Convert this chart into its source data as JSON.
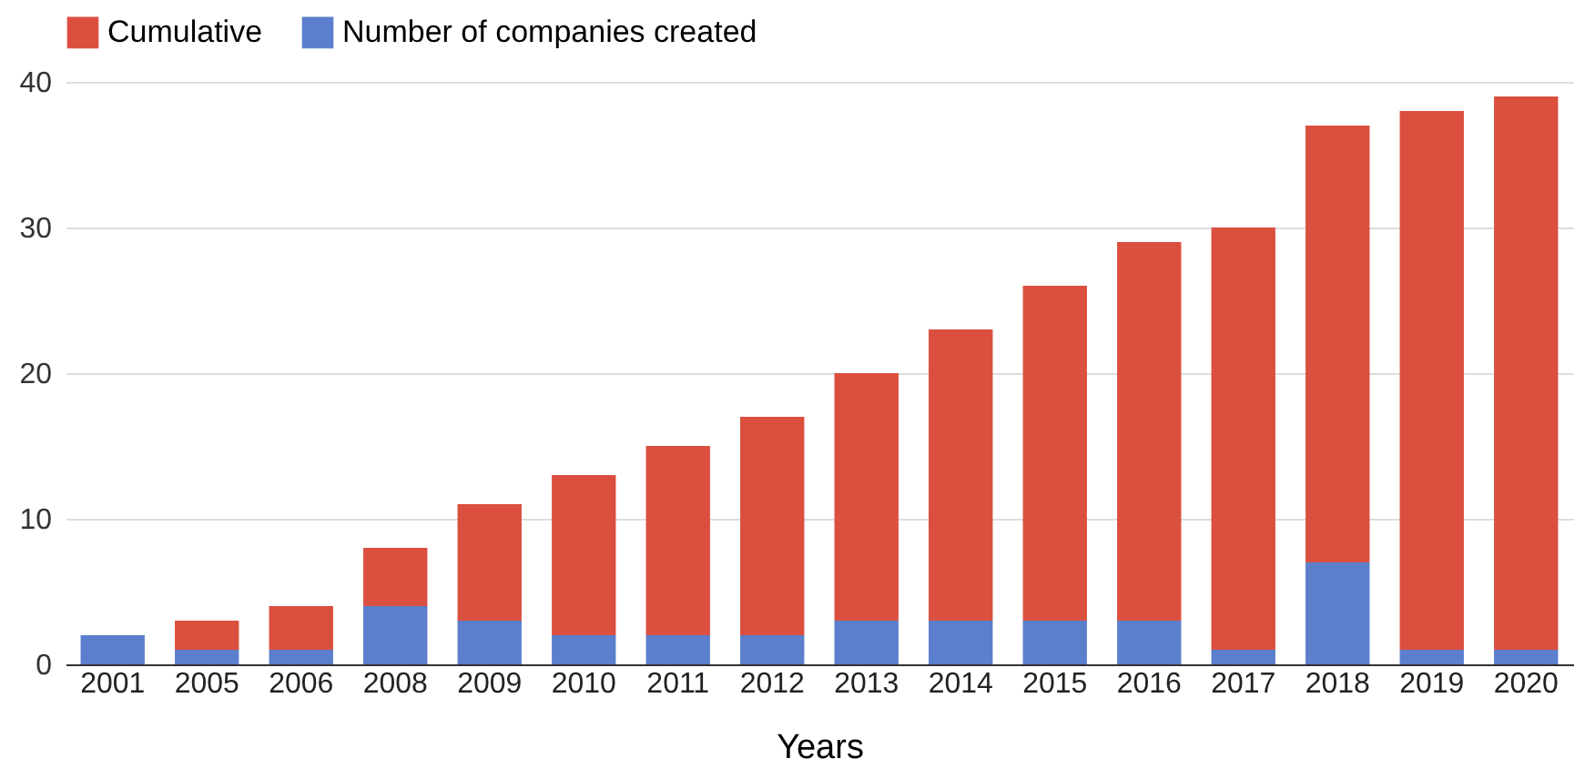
{
  "chart_data": {
    "type": "bar",
    "xlabel": "Years",
    "categories": [
      "2001",
      "2005",
      "2006",
      "2008",
      "2009",
      "2010",
      "2011",
      "2012",
      "2013",
      "2014",
      "2015",
      "2016",
      "2017",
      "2018",
      "2019",
      "2020"
    ],
    "stacked": true,
    "series": [
      {
        "name": "Number of companies created",
        "color": "#5b7fcc",
        "values": [
          2,
          1,
          1,
          4,
          3,
          2,
          2,
          2,
          3,
          3,
          3,
          3,
          1,
          7,
          1,
          1
        ]
      },
      {
        "name": "Cumulative",
        "color": "#db4f3f",
        "values": [
          0,
          2,
          3,
          4,
          8,
          11,
          13,
          15,
          17,
          20,
          23,
          26,
          29,
          30,
          37,
          38
        ]
      }
    ],
    "ylim": [
      0,
      40
    ],
    "yticks": [
      0,
      10,
      20,
      30,
      40
    ],
    "grid": "y",
    "legend": "top"
  }
}
